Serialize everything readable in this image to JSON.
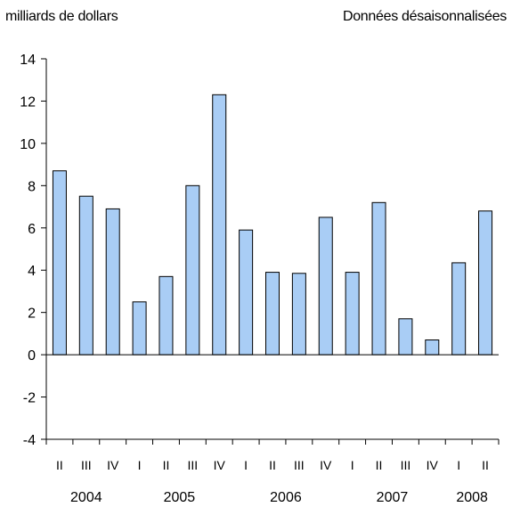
{
  "chart_data": {
    "type": "bar",
    "ylabel": "milliards de dollars",
    "note": "Données désaisonnalisées",
    "ylim": [
      -4,
      14
    ],
    "yticks": [
      -4,
      -2,
      0,
      2,
      4,
      6,
      8,
      10,
      12,
      14
    ],
    "categories": [
      "II",
      "III",
      "IV",
      "I",
      "II",
      "III",
      "IV",
      "I",
      "II",
      "III",
      "IV",
      "I",
      "II",
      "III",
      "IV",
      "I",
      "II"
    ],
    "years": [
      {
        "label": "2004",
        "start": 0,
        "end": 2
      },
      {
        "label": "2005",
        "start": 3,
        "end": 6
      },
      {
        "label": "2006",
        "start": 7,
        "end": 10
      },
      {
        "label": "2007",
        "start": 11,
        "end": 14
      },
      {
        "label": "2008",
        "start": 15,
        "end": 16
      }
    ],
    "values": [
      8.7,
      7.5,
      6.9,
      2.5,
      3.7,
      8.0,
      12.3,
      5.9,
      3.9,
      3.85,
      6.5,
      3.9,
      7.2,
      1.7,
      0.7,
      4.35,
      6.8
    ],
    "bar_color": "#a9cdf5"
  }
}
